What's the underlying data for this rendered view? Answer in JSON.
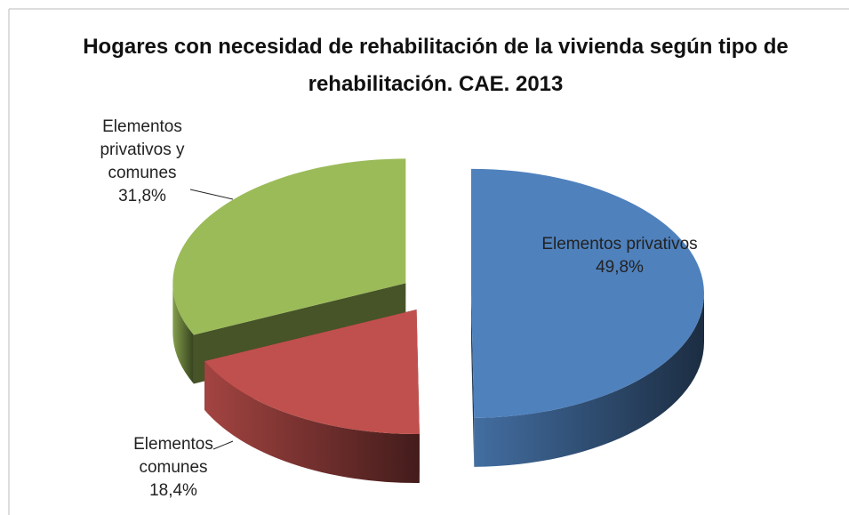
{
  "chart_data": {
    "type": "pie",
    "title": "Hogares con necesidad de rehabilitación de la vivienda según tipo de rehabilitación. CAE. 2013",
    "categories": [
      "Elementos privativos",
      "Elementos comunes",
      "Elementos privativos y comunes"
    ],
    "values": [
      49.8,
      18.4,
      31.8
    ],
    "value_labels": [
      "49,8%",
      "18,4%",
      "31,8%"
    ],
    "colors": [
      "#4f81bd",
      "#c0504d",
      "#9bbb59"
    ]
  }
}
